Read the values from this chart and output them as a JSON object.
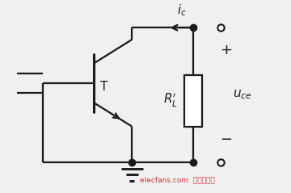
{
  "bg_color": "#f0f0f0",
  "line_color": "#1a1a1a",
  "watermark_color": "#cc2222",
  "watermark_text": "elecfans.com  电子发烧友",
  "ic_label": "$i_c$",
  "T_label": "T",
  "RL_label": "$R_L'$",
  "uce_label": "$u_{ce}$",
  "plus_label": "+",
  "minus_label": "−"
}
